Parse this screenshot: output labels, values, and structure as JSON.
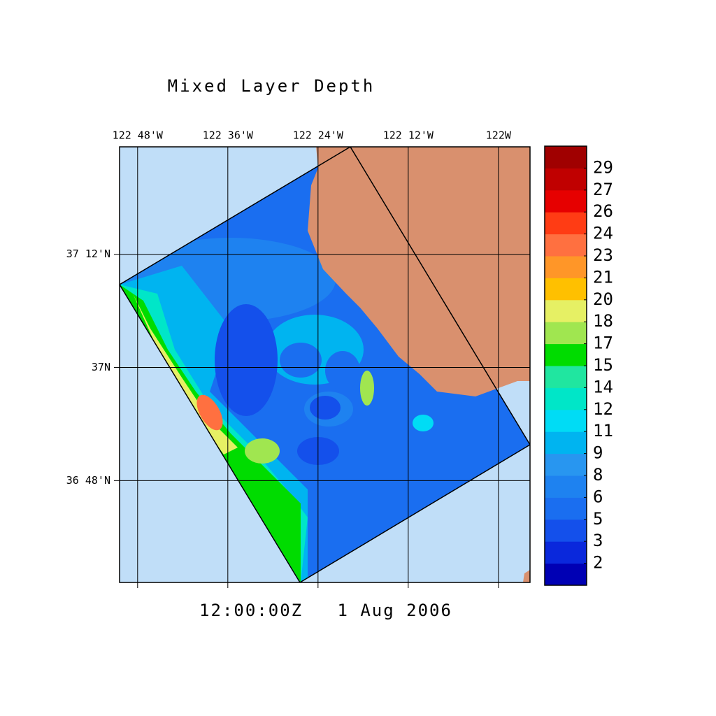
{
  "map": {
    "title": "Mixed Layer Depth",
    "time_label": "12:00:00Z   1 Aug 2006",
    "xlim": [
      -122.84,
      -121.93
    ],
    "ylim": [
      36.62,
      37.39
    ],
    "xticks": [
      {
        "value": -122.8,
        "label": "122 48'W"
      },
      {
        "value": -122.6,
        "label": "122 36'W"
      },
      {
        "value": -122.4,
        "label": "122 24'W"
      },
      {
        "value": -122.2,
        "label": "122 12'W"
      },
      {
        "value": -122.0,
        "label": "122W"
      }
    ],
    "yticks": [
      {
        "value": 37.2,
        "label": "37 12'N"
      },
      {
        "value": 37.0,
        "label": "37N"
      },
      {
        "value": 36.8,
        "label": "36 48'N"
      }
    ],
    "grid": true,
    "colorbar": {
      "levels": [
        2,
        3,
        5,
        6,
        8,
        9,
        11,
        12,
        14,
        15,
        17,
        18,
        20,
        21,
        23,
        24,
        26,
        27,
        29
      ],
      "colors": [
        "#0000b4",
        "#0a28dc",
        "#1450eb",
        "#1a6ef0",
        "#1e82f0",
        "#2896f0",
        "#00b4f0",
        "#00dcf5",
        "#00e6c8",
        "#20e6a0",
        "#00dc00",
        "#a0e650",
        "#e6f064",
        "#ffc000",
        "#ff9628",
        "#ff7040",
        "#ff3c14",
        "#e60000",
        "#c00000",
        "#a00000"
      ]
    }
  }
}
